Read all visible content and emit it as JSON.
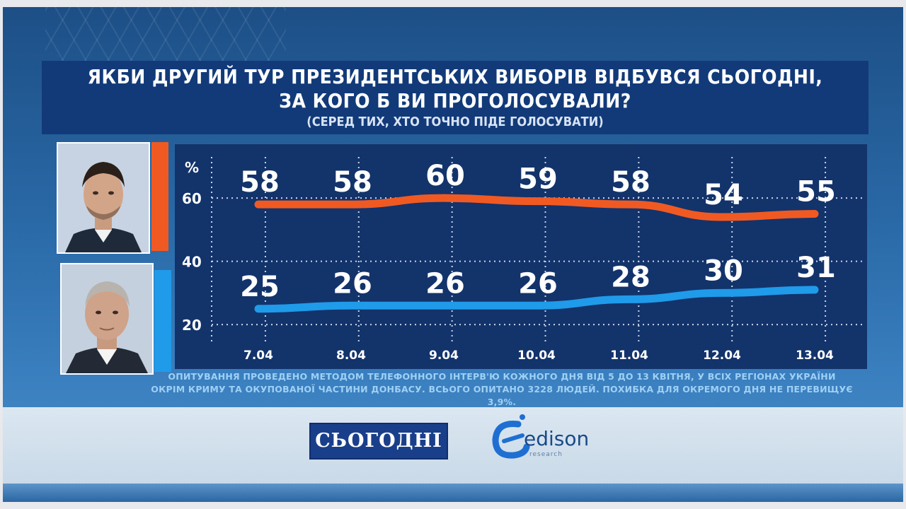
{
  "title": {
    "line1": "ЯКБИ ДРУГИЙ ТУР ПРЕЗИДЕНТСЬКИХ ВИБОРІВ ВІДБУВСЯ СЬОГОДНІ,",
    "line2": "ЗА КОГО Б ВИ ПРОГОЛОСУВАЛИ?",
    "subtitle": "(СЕРЕД ТИХ, ХТО ТОЧНО ПІДЕ ГОЛОСУВАТИ)"
  },
  "colors": {
    "series1": "#f05a22",
    "series2": "#1f9bea",
    "panel": "#13336b",
    "grid": "#c9d6ea"
  },
  "chart_data": {
    "type": "line",
    "x": [
      "7.04",
      "8.04",
      "9.04",
      "10.04",
      "11.04",
      "12.04",
      "13.04"
    ],
    "series": [
      {
        "values": [
          58,
          58,
          60,
          59,
          58,
          54,
          55
        ],
        "color": "#f05a22"
      },
      {
        "values": [
          25,
          26,
          26,
          26,
          28,
          30,
          31
        ],
        "color": "#1f9bea"
      }
    ],
    "y_unit": "%",
    "yticks": [
      20,
      40,
      60
    ],
    "ylim": [
      14,
      73
    ],
    "grid": true
  },
  "note": {
    "line1": "ОПИТУВАННЯ ПРОВЕДЕНО МЕТОДОМ ТЕЛЕФОННОГО ІНТЕРВ'Ю КОЖНОГО ДНЯ ВІД 5 ДО 13 КВІТНЯ, У ВСІХ РЕГІОНАХ УКРАЇНИ",
    "line2": "ОКРІМ КРИМУ ТА ОКУПОВАНОЇ ЧАСТИНИ ДОНБАСУ. ВСЬОГО ОПИТАНО 3228 ЛЮДЕЙ. ПОХИБКА ДЛЯ ОКРЕМОГО ДНЯ НЕ ПЕРЕВИЩУЄ 3,9%."
  },
  "logos": {
    "channel": "СЬОГОДНІ",
    "research": "edison",
    "research_sub": "research"
  }
}
